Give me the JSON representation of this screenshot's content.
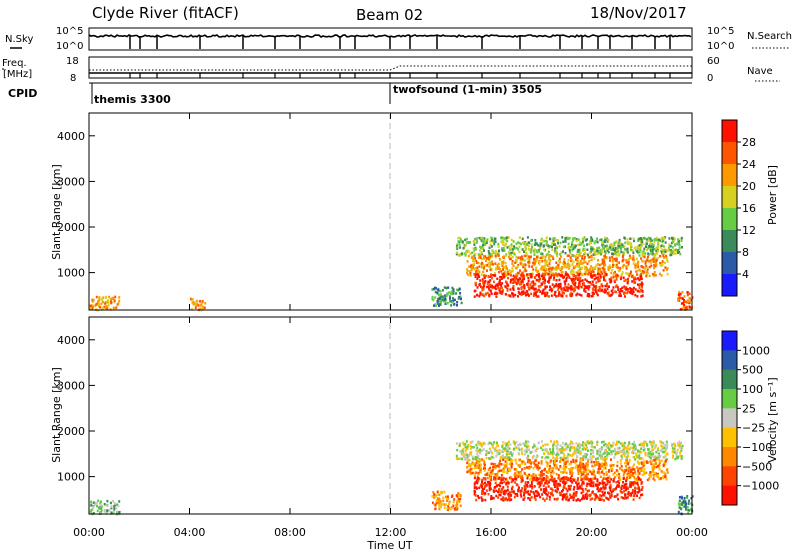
{
  "header": {
    "station": "Clyde River (fitACF)",
    "beam": "Beam 02",
    "date": "18/Nov/2017"
  },
  "strips": {
    "nsky_label": "N.Sky",
    "nsky_ticks": [
      "10^5",
      "10^0"
    ],
    "nsearch_label": "N.Search",
    "nsearch_ticks": [
      "10^5",
      "10^0"
    ],
    "freq_label_1": "Freq.",
    "freq_label_2": "[MHz]",
    "freq_ticks": [
      "18",
      "8"
    ],
    "nave_label": "Nave",
    "nave_ticks": [
      "60",
      "0"
    ],
    "cpid_label": "CPID",
    "cpid_segments": [
      {
        "name": "themis 3300",
        "start_h": 0,
        "end_h": 12
      },
      {
        "name": "twofsound (1-min) 3505",
        "start_h": 12,
        "end_h": 24
      }
    ]
  },
  "chart_data": [
    {
      "type": "heatmap",
      "panel": "power",
      "xlabel": "",
      "ylabel": "Slant Range [km]",
      "xlim": [
        0,
        24
      ],
      "ylim": [
        180,
        4500
      ],
      "yticks": [
        "1000",
        "2000",
        "3000",
        "4000"
      ],
      "colorbar": {
        "label": "Power [dB]",
        "ticks": [
          "4",
          "8",
          "12",
          "16",
          "20",
          "24",
          "28"
        ],
        "colors": [
          "#1a1aff",
          "#2a5aa8",
          "#3a8a5a",
          "#66cc44",
          "#d8d020",
          "#ff9900",
          "#ff5500",
          "#ff1100"
        ]
      },
      "regions": [
        {
          "t0": 14.6,
          "t1": 23.6,
          "r0": 1400,
          "r1": 1800,
          "level": 3
        },
        {
          "t0": 15.0,
          "t1": 23.0,
          "r0": 950,
          "r1": 1400,
          "level": 5
        },
        {
          "t0": 15.3,
          "t1": 22.0,
          "r0": 500,
          "r1": 1000,
          "level": 7
        },
        {
          "t0": 0.0,
          "t1": 1.2,
          "r0": 200,
          "r1": 500,
          "level": 5
        },
        {
          "t0": 4.0,
          "t1": 4.6,
          "r0": 200,
          "r1": 450,
          "level": 5
        },
        {
          "t0": 23.4,
          "t1": 24.0,
          "r0": 200,
          "r1": 600,
          "level": 6
        },
        {
          "t0": 13.6,
          "t1": 14.8,
          "r0": 300,
          "r1": 700,
          "level": 2
        }
      ]
    },
    {
      "type": "heatmap",
      "panel": "velocity",
      "xlabel": "Time UT",
      "ylabel": "Slant Range [km]",
      "xlim": [
        0,
        24
      ],
      "ylim": [
        180,
        4500
      ],
      "xticks": [
        "00:00",
        "04:00",
        "08:00",
        "12:00",
        "16:00",
        "20:00",
        "00:00"
      ],
      "yticks": [
        "1000",
        "2000",
        "3000",
        "4000"
      ],
      "colorbar": {
        "label": "Velocity [m s⁻¹]",
        "ticks": [
          "1000",
          "500",
          "100",
          "25",
          "−25",
          "−100",
          "−500",
          "−1000"
        ],
        "colors": [
          "#1a1aff",
          "#2a5aa8",
          "#3a8a5a",
          "#66cc44",
          "#c8c8c0",
          "#ffc000",
          "#ff8800",
          "#ff4400",
          "#ff1100"
        ]
      },
      "regions": [
        {
          "t0": 14.6,
          "t1": 23.6,
          "r0": 1400,
          "r1": 1800,
          "level": 4
        },
        {
          "t0": 15.0,
          "t1": 23.0,
          "r0": 950,
          "r1": 1400,
          "level": 6
        },
        {
          "t0": 15.3,
          "t1": 22.0,
          "r0": 500,
          "r1": 1000,
          "level": 8
        },
        {
          "t0": 0.0,
          "t1": 1.2,
          "r0": 200,
          "r1": 500,
          "level": 3
        },
        {
          "t0": 23.4,
          "t1": 24.0,
          "r0": 200,
          "r1": 600,
          "level": 2
        },
        {
          "t0": 13.6,
          "t1": 14.8,
          "r0": 300,
          "r1": 700,
          "level": 6
        }
      ]
    }
  ]
}
